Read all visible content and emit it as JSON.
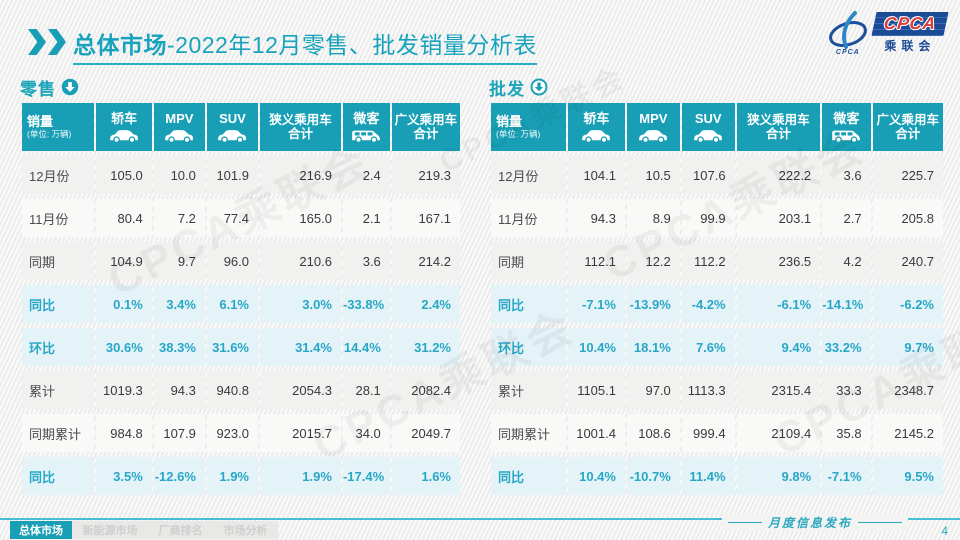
{
  "header": {
    "title_bold": "总体市场",
    "title_rest": "-2022年12月零售、批发销量分析表"
  },
  "logo": {
    "mark_text": "CPCA",
    "box_text": "CPCA",
    "org_text": "乘联会"
  },
  "columns": [
    {
      "label": "销量",
      "sub": "(单位: 万辆)"
    },
    {
      "label": "轿车",
      "icon": "car-icon"
    },
    {
      "label": "MPV",
      "icon": "car-icon"
    },
    {
      "label": "SUV",
      "icon": "car-icon"
    },
    {
      "label": "狭义乘用车",
      "label2": "合计"
    },
    {
      "label": "微客",
      "icon": "van-icon"
    },
    {
      "label": "广义乘用车",
      "label2": "合计"
    }
  ],
  "chart_data": [
    {
      "type": "table",
      "title": "零售",
      "unit": "(单位: 万辆)",
      "columns": [
        "销量",
        "轿车",
        "MPV",
        "SUV",
        "狭义乘用车合计",
        "微客",
        "广义乘用车合计"
      ],
      "rows": [
        {
          "label": "12月份",
          "type": "normal",
          "values": [
            "105.0",
            "10.0",
            "101.9",
            "216.9",
            "2.4",
            "219.3"
          ]
        },
        {
          "label": "11月份",
          "type": "normal",
          "values": [
            "80.4",
            "7.2",
            "77.4",
            "165.0",
            "2.1",
            "167.1"
          ]
        },
        {
          "label": "同期",
          "type": "normal",
          "values": [
            "104.9",
            "9.7",
            "96.0",
            "210.6",
            "3.6",
            "214.2"
          ]
        },
        {
          "label": "同比",
          "type": "percent",
          "values": [
            "0.1%",
            "3.4%",
            "6.1%",
            "3.0%",
            "-33.8%",
            "2.4%"
          ]
        },
        {
          "label": "环比",
          "type": "percent",
          "values": [
            "30.6%",
            "38.3%",
            "31.6%",
            "31.4%",
            "14.4%",
            "31.2%"
          ]
        },
        {
          "label": "累计",
          "type": "normal",
          "values": [
            "1019.3",
            "94.3",
            "940.8",
            "2054.3",
            "28.1",
            "2082.4"
          ]
        },
        {
          "label": "同期累计",
          "type": "normal",
          "values": [
            "984.8",
            "107.9",
            "923.0",
            "2015.7",
            "34.0",
            "2049.7"
          ]
        },
        {
          "label": "同比",
          "type": "percent",
          "values": [
            "3.5%",
            "-12.6%",
            "1.9%",
            "1.9%",
            "-17.4%",
            "1.6%"
          ]
        }
      ]
    },
    {
      "type": "table",
      "title": "批发",
      "unit": "(单位: 万辆)",
      "columns": [
        "销量",
        "轿车",
        "MPV",
        "SUV",
        "狭义乘用车合计",
        "微客",
        "广义乘用车合计"
      ],
      "rows": [
        {
          "label": "12月份",
          "type": "normal",
          "values": [
            "104.1",
            "10.5",
            "107.6",
            "222.2",
            "3.6",
            "225.7"
          ]
        },
        {
          "label": "11月份",
          "type": "normal",
          "values": [
            "94.3",
            "8.9",
            "99.9",
            "203.1",
            "2.7",
            "205.8"
          ]
        },
        {
          "label": "同期",
          "type": "normal",
          "values": [
            "112.1",
            "12.2",
            "112.2",
            "236.5",
            "4.2",
            "240.7"
          ]
        },
        {
          "label": "同比",
          "type": "percent",
          "values": [
            "-7.1%",
            "-13.9%",
            "-4.2%",
            "-6.1%",
            "-14.1%",
            "-6.2%"
          ]
        },
        {
          "label": "环比",
          "type": "percent",
          "values": [
            "10.4%",
            "18.1%",
            "7.6%",
            "9.4%",
            "33.2%",
            "9.7%"
          ]
        },
        {
          "label": "累计",
          "type": "normal",
          "values": [
            "1105.1",
            "97.0",
            "1113.3",
            "2315.4",
            "33.3",
            "2348.7"
          ]
        },
        {
          "label": "同期累计",
          "type": "normal",
          "values": [
            "1001.4",
            "108.6",
            "999.4",
            "2109.4",
            "35.8",
            "2145.2"
          ]
        },
        {
          "label": "同比",
          "type": "percent",
          "values": [
            "10.4%",
            "-10.7%",
            "11.4%",
            "9.8%",
            "-7.1%",
            "9.5%"
          ]
        }
      ]
    }
  ],
  "colors": {
    "accent": "#189fb5",
    "percent_text": "#28a7c6",
    "percent_row_bg": "#e4f3f8",
    "logo_blue": "#1c4a94",
    "logo_red": "#d93a3a"
  },
  "footer": {
    "tabs": [
      {
        "id": "overall-market",
        "label": "总体市场",
        "active": true
      },
      {
        "id": "nev-market",
        "label": "新能源市场",
        "active": false
      },
      {
        "id": "manufacturer-ranking",
        "label": "厂商排名",
        "active": false
      },
      {
        "id": "market-analysis",
        "label": "市场分析",
        "active": false
      }
    ],
    "release_note": "月度信息发布",
    "page_number": "4"
  },
  "watermark_text": "CPCA乘联会"
}
